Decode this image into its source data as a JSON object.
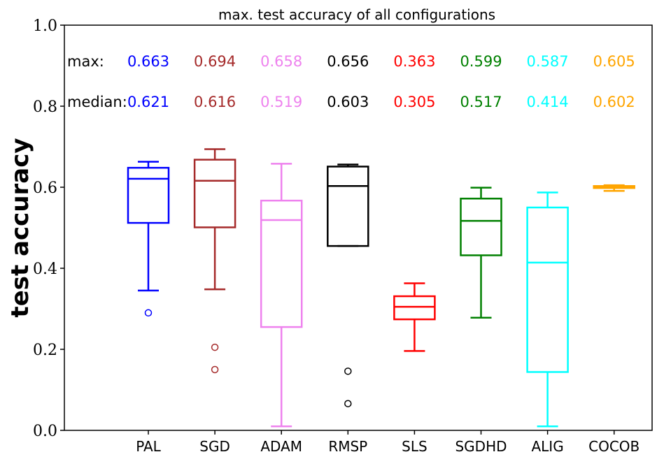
{
  "chart_data": {
    "type": "box",
    "title": "max. test accuracy of all configurations",
    "ylabel": "test accuracy",
    "xlabel": "",
    "ylim": [
      0.0,
      1.0
    ],
    "yticks": [
      "0.0",
      "0.2",
      "0.4",
      "0.6",
      "0.8",
      "1.0"
    ],
    "grid": false,
    "row_labels": {
      "max": "max:",
      "median": "median:"
    },
    "boxes": [
      {
        "name": "PAL",
        "color": "#0000ff",
        "whisker_low": 0.345,
        "q1": 0.512,
        "median": 0.621,
        "q3": 0.648,
        "whisker_high": 0.663,
        "outliers": [
          0.29
        ],
        "max_label": "0.663",
        "median_label": "0.621"
      },
      {
        "name": "SGD",
        "color": "#a52a2a",
        "whisker_low": 0.348,
        "q1": 0.501,
        "median": 0.616,
        "q3": 0.668,
        "whisker_high": 0.694,
        "outliers": [
          0.205,
          0.15
        ],
        "max_label": "0.694",
        "median_label": "0.616"
      },
      {
        "name": "ADAM",
        "color": "#ee82ee",
        "whisker_low": 0.01,
        "q1": 0.255,
        "median": 0.519,
        "q3": 0.567,
        "whisker_high": 0.658,
        "outliers": [],
        "max_label": "0.658",
        "median_label": "0.519"
      },
      {
        "name": "RMSP",
        "color": "#000000",
        "whisker_low": 0.455,
        "q1": 0.455,
        "median": 0.603,
        "q3": 0.651,
        "whisker_high": 0.656,
        "outliers": [
          0.146,
          0.066
        ],
        "max_label": "0.656",
        "median_label": "0.603"
      },
      {
        "name": "SLS",
        "color": "#ff0000",
        "whisker_low": 0.196,
        "q1": 0.274,
        "median": 0.305,
        "q3": 0.331,
        "whisker_high": 0.363,
        "outliers": [],
        "max_label": "0.363",
        "median_label": "0.305"
      },
      {
        "name": "SGDHD",
        "color": "#008000",
        "whisker_low": 0.278,
        "q1": 0.432,
        "median": 0.517,
        "q3": 0.572,
        "whisker_high": 0.599,
        "outliers": [],
        "max_label": "0.599",
        "median_label": "0.517"
      },
      {
        "name": "ALIG",
        "color": "#00ffff",
        "whisker_low": 0.01,
        "q1": 0.144,
        "median": 0.414,
        "q3": 0.55,
        "whisker_high": 0.587,
        "outliers": [],
        "max_label": "0.587",
        "median_label": "0.414"
      },
      {
        "name": "COCOB",
        "color": "#ffa500",
        "whisker_low": 0.591,
        "q1": 0.598,
        "median": 0.602,
        "q3": 0.603,
        "whisker_high": 0.605,
        "outliers": [],
        "max_label": "0.605",
        "median_label": "0.602"
      }
    ]
  }
}
